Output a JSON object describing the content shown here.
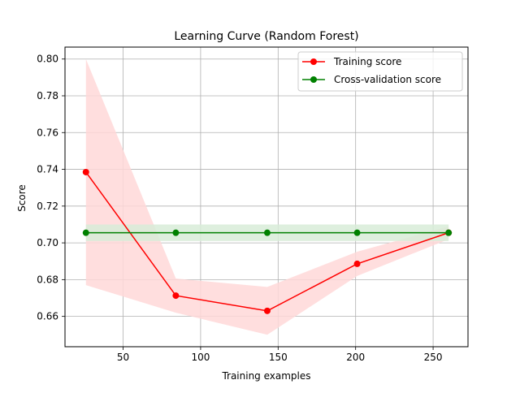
{
  "chart_data": {
    "type": "line",
    "title": "Learning Curve (Random Forest)",
    "xlabel": "Training examples",
    "ylabel": "Score",
    "xlim": [
      12.5,
      272.5
    ],
    "ylim": [
      0.6435,
      0.8065
    ],
    "xticks": [
      50,
      100,
      150,
      200,
      250
    ],
    "xtick_labels": [
      "50",
      "100",
      "150",
      "200",
      "250"
    ],
    "yticks": [
      0.66,
      0.68,
      0.7,
      0.72,
      0.74,
      0.76,
      0.78,
      0.8
    ],
    "ytick_labels": [
      "0.66",
      "0.68",
      "0.70",
      "0.72",
      "0.74",
      "0.76",
      "0.78",
      "0.80"
    ],
    "grid": true,
    "legend_position": "top-right",
    "series": [
      {
        "name": "Training score",
        "color": "#ff0000",
        "marker": "circle",
        "x": [
          26,
          84,
          143,
          201,
          260
        ],
        "y": [
          0.7385,
          0.6713,
          0.663,
          0.6886,
          0.7055
        ],
        "band_lower": [
          0.677,
          0.662,
          0.65,
          0.682,
          0.702
        ],
        "band_upper": [
          0.8,
          0.6806,
          0.676,
          0.6952,
          0.709
        ],
        "band_color": "#ffd8d8"
      },
      {
        "name": "Cross-validation score",
        "color": "#008000",
        "marker": "circle",
        "x": [
          26,
          84,
          143,
          201,
          260
        ],
        "y": [
          0.7055,
          0.7055,
          0.7055,
          0.7055,
          0.7055
        ],
        "band_lower": [
          0.701,
          0.701,
          0.701,
          0.701,
          0.701
        ],
        "band_upper": [
          0.71,
          0.71,
          0.71,
          0.71,
          0.71
        ],
        "band_color": "#d8ecd8"
      }
    ]
  }
}
